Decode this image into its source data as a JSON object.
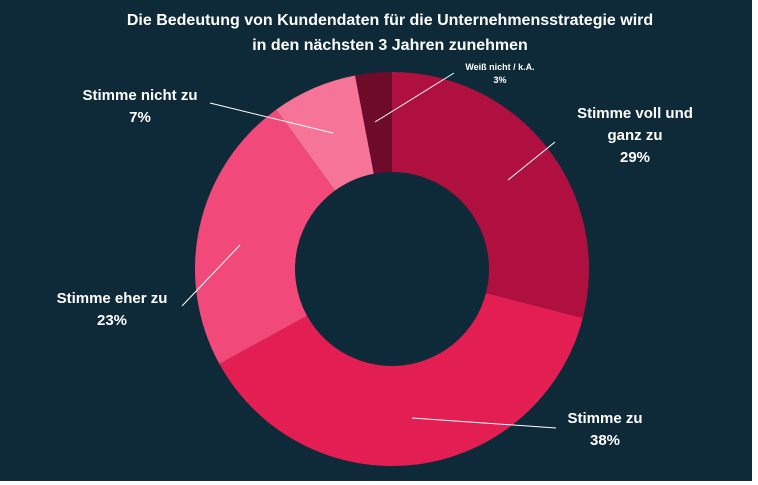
{
  "chart_data": {
    "type": "pie",
    "variant": "donut",
    "title": "Die Bedeutung von Kundendaten für die Unternehmensstrategie wird in den nächsten 3 Jahren zunehmen",
    "title_lines": [
      "Die Bedeutung von Kundendaten für die Unternehmensstrategie wird",
      "in den nächsten 3 Jahren zunehmen"
    ],
    "unit": "%",
    "slices": [
      {
        "name": "Stimme voll und ganz zu",
        "label_lines": [
          "Stimme voll und",
          "ganz zu"
        ],
        "value": 29,
        "display": "29%",
        "color": "#b0103f"
      },
      {
        "name": "Stimme zu",
        "label_lines": [
          "Stimme zu"
        ],
        "value": 38,
        "display": "38%",
        "color": "#e31e53"
      },
      {
        "name": "Stimme eher zu",
        "label_lines": [
          "Stimme eher zu"
        ],
        "value": 23,
        "display": "23%",
        "color": "#f0497a"
      },
      {
        "name": "Stimme nicht zu",
        "label_lines": [
          "Stimme nicht zu"
        ],
        "value": 7,
        "display": "7%",
        "color": "#f77499"
      },
      {
        "name": "Weiß nicht / k.A.",
        "label_lines": [
          "Weiß nicht / k.A."
        ],
        "value": 3,
        "display": "3%",
        "color": "#6e0b2b"
      }
    ]
  },
  "colors": {
    "background": "#0e2a38",
    "text": "#ffffff",
    "leader_line": "#ffffff"
  }
}
